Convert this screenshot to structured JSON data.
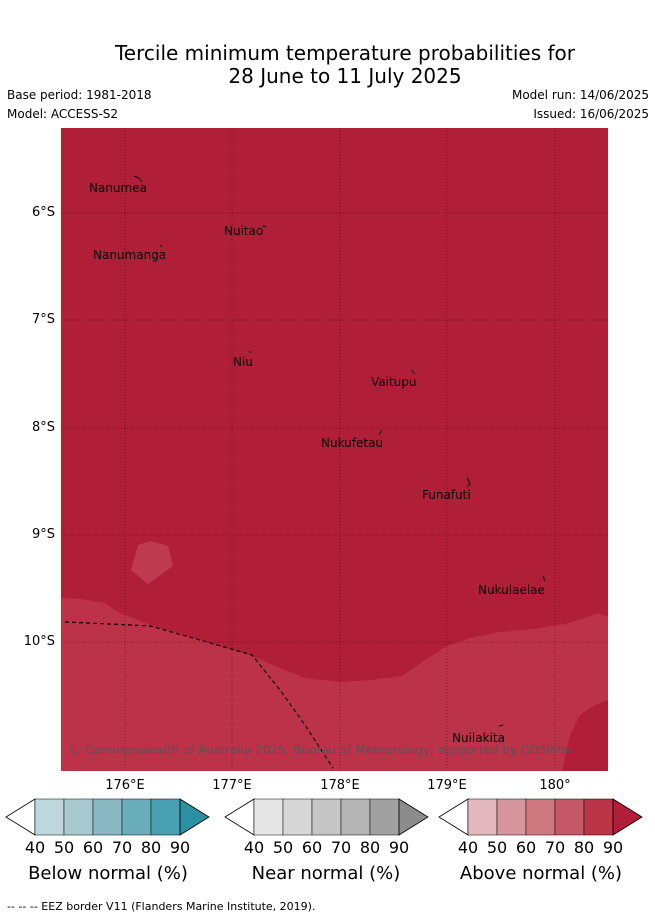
{
  "title": {
    "line1": "Tercile minimum temperature probabilities for",
    "line2": "28 June to 11 July 2025"
  },
  "meta": {
    "base_period": "Base period: 1981-2018",
    "model": "Model: ACCESS-S2",
    "model_run": "Model run: 14/06/2025",
    "issued": "Issued: 16/06/2025"
  },
  "map": {
    "lat_labels": [
      "6°S",
      "7°S",
      "8°S",
      "9°S",
      "10°S"
    ],
    "lon_labels": [
      "176°E",
      "177°E",
      "178°E",
      "179°E",
      "180°"
    ],
    "places": [
      "Nanumea",
      "Nuitao",
      "Nanumanga",
      "Niu",
      "Vaitupu",
      "Nukufetau",
      "Funafuti",
      "Nukulaelae",
      "Nuilakita"
    ],
    "copyright": "© Commonwealth of Australia 2025, Bureau of Meteorology, supported by COSPPac",
    "fill_colors": {
      "dominant": "#b01e38",
      "secondary": "#bc3249",
      "patch": "#bd3a50"
    }
  },
  "colorbars": [
    {
      "title": "Below normal (%)",
      "ticks": [
        "40",
        "50",
        "60",
        "70",
        "80",
        "90"
      ],
      "colors": [
        "#bdd7dd",
        "#a7cacf",
        "#8ab8c3",
        "#6aadbb",
        "#48a1b2",
        "#2d8fa3"
      ]
    },
    {
      "title": "Near normal (%)",
      "ticks": [
        "40",
        "50",
        "60",
        "70",
        "80",
        "90"
      ],
      "colors": [
        "#e6e6e6",
        "#d7d7d7",
        "#c6c6c6",
        "#b4b4b4",
        "#a0a0a0",
        "#8c8c8c"
      ]
    },
    {
      "title": "Above normal (%)",
      "ticks": [
        "40",
        "50",
        "60",
        "70",
        "80",
        "90"
      ],
      "colors": [
        "#e3b8bf",
        "#d7959e",
        "#d07880",
        "#c5596a",
        "#bb3448",
        "#b01e38"
      ]
    }
  ],
  "footnote": "-- -- -- EEZ border V11 (Flanders Marine Institute, 2019)."
}
